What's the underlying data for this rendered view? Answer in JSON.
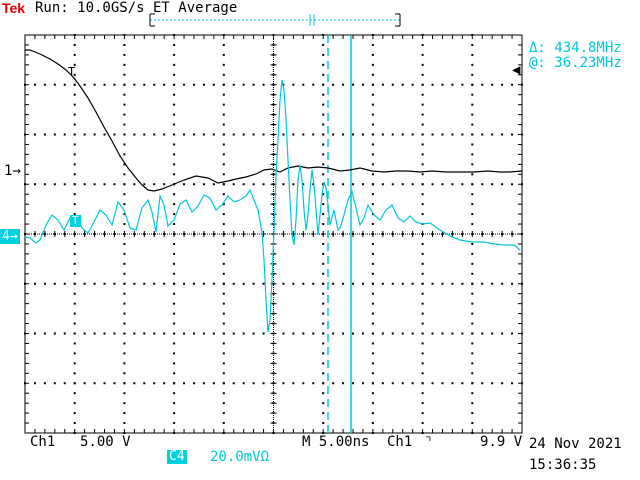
{
  "header": {
    "brand": "Tek",
    "status": "Run: 10.0GS/s ET Average",
    "trigger_marker": "T"
  },
  "measurements": {
    "delta": "Δ: 434.8MHz",
    "at": "@: 36.23MHz"
  },
  "channel_markers": {
    "ch1": "1",
    "ch4": "4",
    "trigger_level": "T"
  },
  "footer": {
    "ch1_label": "Ch1",
    "ch1_scale": "5.00 V",
    "ch4_label": "C4",
    "ch4_scale": "20.0mVΩ",
    "timebase": "M 5.00ns",
    "trigger_source": "Ch1",
    "trigger_slope_icon": "falling-edge-icon",
    "trigger_level": "9.9 V",
    "date": "24 Nov 2021",
    "time": "15:36:35"
  },
  "colors": {
    "ch1_trace": "#000000",
    "ch4_trace": "#00c8d8",
    "brand": "#e10000",
    "grid": "#000000"
  }
}
